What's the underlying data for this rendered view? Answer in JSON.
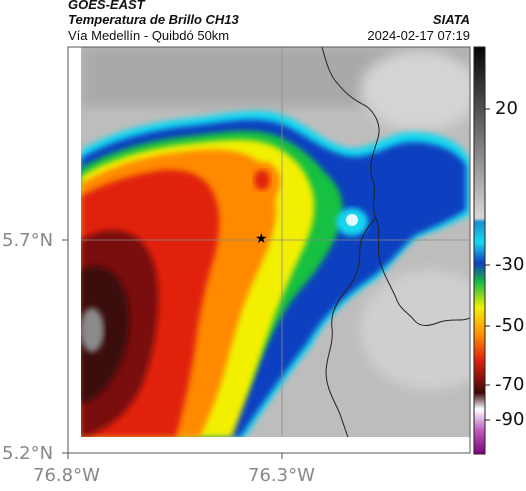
{
  "header": {
    "title": "GOES-EAST",
    "subtitle": "Temperatura de Brillo CH13",
    "organization": "SIATA",
    "route": "Vía Medellín - Quibdó 50km",
    "timestamp": "2024-02-17 07:19"
  },
  "axes": {
    "lat_ticks": [
      "5.7°N",
      "5.2°N"
    ],
    "lon_ticks": [
      "76.8°W",
      "76.3°W"
    ]
  },
  "colorbar": {
    "tick_labels": [
      "20",
      "-30",
      "-50",
      "-70",
      "-90"
    ]
  },
  "colors": {
    "cold_core": "#3a0a0a",
    "red": "#e02010",
    "orange": "#ff8a00",
    "yellow": "#f2f000",
    "green": "#18c040",
    "blue": "#1040c0",
    "cyan": "#18d8f0",
    "clear_gray": "#bdbdbd"
  },
  "marker": {
    "symbol": "★",
    "name": "reference-point"
  }
}
